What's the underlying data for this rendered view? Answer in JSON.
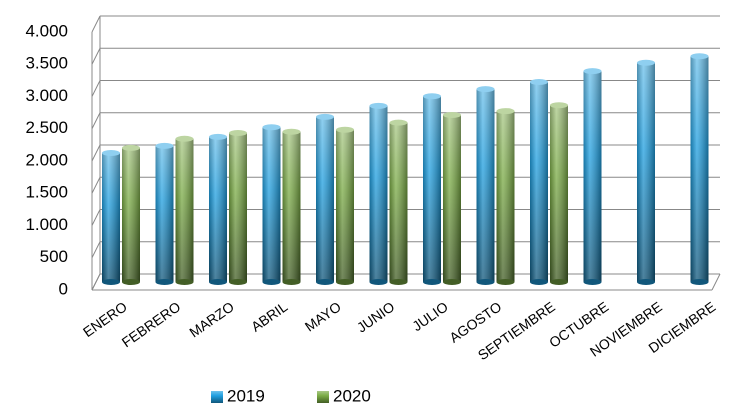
{
  "chart_data": {
    "type": "bar",
    "categories": [
      "ENERO",
      "FEBRERO",
      "MARZO",
      "ABRIL",
      "MAYO",
      "JUNIO",
      "JULIO",
      "AGOSTO",
      "SEPTIEMBRE",
      "OCTUBRE",
      "NOVIEMBRE",
      "DICIEMBRE"
    ],
    "series": [
      {
        "name": "2019",
        "color": "#1f9fe0",
        "values": [
          2000,
          2110,
          2250,
          2400,
          2560,
          2730,
          2880,
          2990,
          3100,
          3270,
          3400,
          3500
        ]
      },
      {
        "name": "2020",
        "color": "#7aab45",
        "values": [
          2080,
          2220,
          2310,
          2330,
          2360,
          2470,
          2590,
          2650,
          2740,
          null,
          null,
          null
        ]
      }
    ],
    "ylim": [
      0,
      4000
    ],
    "yticks": [
      0,
      500,
      {
        "value": 1000,
        "label": "1.000"
      },
      {
        "value": 1500,
        "label": "1.500"
      },
      {
        "value": 2000,
        "label": "2.000"
      },
      {
        "value": 2500,
        "label": "2.500"
      },
      {
        "value": 3000,
        "label": "3.000"
      },
      {
        "value": 3500,
        "label": "3.500"
      },
      {
        "value": 4000,
        "label": "4.000"
      }
    ],
    "grid": true,
    "legend": "bottom"
  }
}
